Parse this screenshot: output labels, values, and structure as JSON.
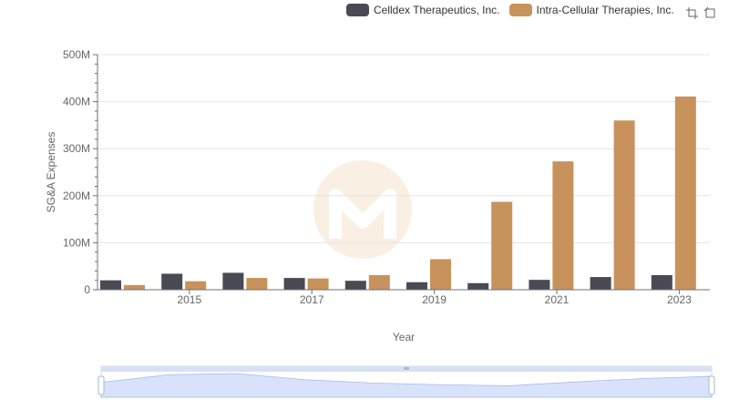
{
  "legend": {
    "items": [
      {
        "label": "Celldex Therapeutics, Inc.",
        "color": "#4a4a55"
      },
      {
        "label": "Intra-Cellular Therapies, Inc.",
        "color": "#c8925c"
      }
    ]
  },
  "toolbox": {
    "icons": [
      "zoom-icon",
      "restore-icon"
    ]
  },
  "chart_data": {
    "type": "bar",
    "categories": [
      "2014",
      "2015",
      "2016",
      "2017",
      "2018",
      "2019",
      "2020",
      "2021",
      "2022",
      "2023"
    ],
    "tick_labels": [
      "2015",
      "2017",
      "2019",
      "2021",
      "2023"
    ],
    "series": [
      {
        "name": "Celldex Therapeutics, Inc.",
        "color": "#4a4a55",
        "values": [
          20000000,
          34000000,
          36000000,
          25000000,
          19000000,
          16000000,
          14000000,
          21000000,
          27000000,
          31000000
        ]
      },
      {
        "name": "Intra-Cellular Therapies, Inc.",
        "color": "#c8925c",
        "values": [
          10000000,
          18000000,
          25000000,
          24000000,
          31000000,
          65000000,
          187000000,
          273000000,
          360000000,
          411000000
        ]
      }
    ],
    "y_ticks": [
      "0",
      "100M",
      "200M",
      "300M",
      "400M",
      "500M"
    ],
    "xlabel": "Year",
    "ylabel": "SG&A Expenses",
    "ylim": [
      0,
      500000000
    ],
    "grid": true,
    "legend_position": "top-right",
    "slider": true
  }
}
